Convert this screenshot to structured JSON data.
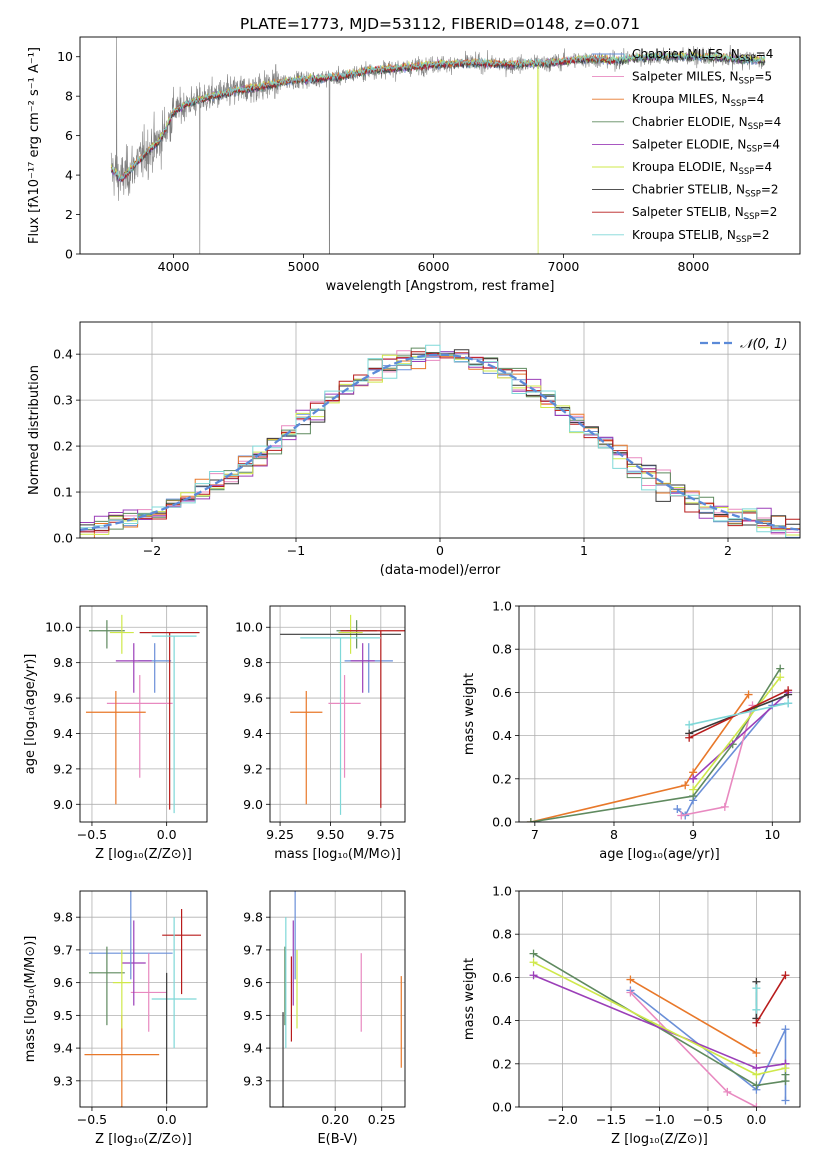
{
  "colors": {
    "chabrier_miles": "#6a8fd8",
    "salpeter_miles": "#e889c0",
    "kroupa_miles": "#e8782a",
    "chabrier_elodie": "#5f8a5f",
    "salpeter_elodie": "#9b3fb8",
    "kroupa_elodie": "#cfe84a",
    "chabrier_stelib": "#3a3a3a",
    "salpeter_stelib": "#b81c1c",
    "kroupa_stelib": "#7fd8d8",
    "normal": "#5b8ad8",
    "grid": "#b0b0b0",
    "data": "#808080"
  },
  "chart_data": [
    {
      "id": "spectrum",
      "type": "line",
      "title": "PLATE=1773, MJD=53112, FIBERID=0148, z=0.071",
      "xlabel": "wavelength [Angstrom, rest frame]",
      "ylabel": "Flux [fλ10⁻¹⁷ erg cm⁻² s⁻¹ A⁻¹]",
      "xlim": [
        3280,
        8820
      ],
      "ylim": [
        0,
        11
      ],
      "xticks": [
        "4000",
        "5000",
        "6000",
        "7000",
        "8000"
      ],
      "yticks": [
        "0",
        "2",
        "4",
        "6",
        "8",
        "10"
      ],
      "grid": false,
      "legend_position": "top-right",
      "legend": [
        {
          "label": "Chabrier MILES, N",
          "sub": "SSP",
          "eq": "=4",
          "color_key": "chabrier_miles"
        },
        {
          "label": "Salpeter MILES, N",
          "sub": "SSP",
          "eq": "=5",
          "color_key": "salpeter_miles"
        },
        {
          "label": "Kroupa MILES, N",
          "sub": "SSP",
          "eq": "=4",
          "color_key": "kroupa_miles"
        },
        {
          "label": "Chabrier ELODIE, N",
          "sub": "SSP",
          "eq": "=4",
          "color_key": "chabrier_elodie"
        },
        {
          "label": "Salpeter ELODIE, N",
          "sub": "SSP",
          "eq": "=4",
          "color_key": "salpeter_elodie"
        },
        {
          "label": "Kroupa ELODIE, N",
          "sub": "SSP",
          "eq": "=4",
          "color_key": "kroupa_elodie"
        },
        {
          "label": "Chabrier STELIB, N",
          "sub": "SSP",
          "eq": "=2",
          "color_key": "chabrier_stelib"
        },
        {
          "label": "Salpeter STELIB, N",
          "sub": "SSP",
          "eq": "=2",
          "color_key": "salpeter_stelib"
        },
        {
          "label": "Kroupa STELIB, N",
          "sub": "SSP",
          "eq": "=2",
          "color_key": "kroupa_stelib"
        }
      ],
      "continuum": {
        "x": [
          3520,
          3600,
          3700,
          3800,
          3900,
          4000,
          4100,
          4300,
          4500,
          4700,
          4900,
          5100,
          5300,
          5500,
          5700,
          6000,
          6300,
          6600,
          6900,
          7200,
          7400,
          7500,
          7700,
          8000,
          8300,
          8550
        ],
        "y": [
          4.3,
          3.8,
          4.5,
          5.2,
          5.8,
          7.2,
          7.6,
          8.0,
          8.3,
          8.5,
          8.8,
          8.9,
          9.0,
          9.3,
          9.4,
          9.6,
          9.7,
          9.6,
          9.7,
          9.9,
          9.8,
          9.9,
          10.0,
          10.0,
          9.9,
          9.8
        ]
      }
    },
    {
      "id": "residuals",
      "type": "histogram",
      "xlabel": "(data-model)/error",
      "ylabel": "Normed distribution",
      "xlim": [
        -2.5,
        2.5
      ],
      "ylim": [
        0,
        0.47
      ],
      "xticks": [
        "−2",
        "−1",
        "0",
        "1",
        "2"
      ],
      "yticks": [
        "0.0",
        "0.1",
        "0.2",
        "0.3",
        "0.4"
      ],
      "grid": true,
      "legend_position": "top-right",
      "legend_label": "𝒩(0, 1)",
      "bin_width": 0.1
    },
    {
      "id": "age_vs_Z",
      "type": "errorbar",
      "xlabel": "Z [log₁₀(Z/Z⊙)]",
      "ylabel": "age  [log₁₀(age/yr)]",
      "xlim": [
        -0.58,
        0.27
      ],
      "ylim": [
        8.9,
        10.12
      ],
      "xticks": [
        "−0.5",
        "0.0"
      ],
      "yticks": [
        "9.0",
        "9.2",
        "9.4",
        "9.6",
        "9.8",
        "10.0"
      ],
      "grid": true,
      "points": [
        {
          "model": "chabrier_miles",
          "x": -0.08,
          "y": 9.81,
          "xerr": 0.11,
          "yerr": [
            0.1,
            0.18
          ]
        },
        {
          "model": "salpeter_miles",
          "x": -0.18,
          "y": 9.57,
          "xerr": 0.22,
          "yerr": [
            0.16,
            0.42
          ]
        },
        {
          "model": "kroupa_miles",
          "x": -0.34,
          "y": 9.52,
          "xerr": 0.2,
          "yerr": [
            0.12,
            0.52
          ]
        },
        {
          "model": "chabrier_elodie",
          "x": -0.4,
          "y": 9.98,
          "xerr": 0.12,
          "yerr": [
            0.06,
            0.1
          ]
        },
        {
          "model": "salpeter_elodie",
          "x": -0.22,
          "y": 9.81,
          "xerr": 0.12,
          "yerr": [
            0.1,
            0.18
          ]
        },
        {
          "model": "kroupa_elodie",
          "x": -0.3,
          "y": 9.97,
          "xerr": 0.08,
          "yerr": [
            0.1,
            0.12
          ]
        },
        {
          "model": "chabrier_stelib",
          "x": 0.02,
          "y": 9.97,
          "xerr": 0.2,
          "yerr": [
            0.0,
            0.0
          ]
        },
        {
          "model": "salpeter_stelib",
          "x": 0.02,
          "y": 9.97,
          "xerr": 0.2,
          "yerr": [
            0.0,
            1.0
          ]
        },
        {
          "model": "kroupa_stelib",
          "x": 0.05,
          "y": 9.95,
          "xerr": 0.15,
          "yerr": [
            0.0,
            1.0
          ]
        }
      ]
    },
    {
      "id": "age_vs_mass",
      "type": "errorbar",
      "xlabel": "mass [log₁₀(M/M⊙)]",
      "ylabel": "",
      "xlim": [
        9.2,
        9.87
      ],
      "ylim": [
        8.9,
        10.12
      ],
      "xticks": [
        "9.25",
        "9.50",
        "9.75"
      ],
      "yticks": [
        "9.0",
        "9.2",
        "9.4",
        "9.6",
        "9.8",
        "10.0"
      ],
      "grid": true,
      "points": [
        {
          "model": "chabrier_miles",
          "x": 9.69,
          "y": 9.81,
          "xerr": 0.12,
          "yerr": [
            0.1,
            0.18
          ]
        },
        {
          "model": "salpeter_miles",
          "x": 9.57,
          "y": 9.57,
          "xerr": 0.08,
          "yerr": [
            0.16,
            0.42
          ]
        },
        {
          "model": "kroupa_miles",
          "x": 9.38,
          "y": 9.52,
          "xerr": 0.08,
          "yerr": [
            0.12,
            0.52
          ]
        },
        {
          "model": "chabrier_elodie",
          "x": 9.63,
          "y": 9.98,
          "xerr": 0.1,
          "yerr": [
            0.06,
            0.1
          ]
        },
        {
          "model": "salpeter_elodie",
          "x": 9.66,
          "y": 9.81,
          "xerr": 0.06,
          "yerr": [
            0.1,
            0.18
          ]
        },
        {
          "model": "kroupa_elodie",
          "x": 9.6,
          "y": 9.97,
          "xerr": 0.06,
          "yerr": [
            0.1,
            0.12
          ]
        },
        {
          "model": "chabrier_stelib",
          "x": 9.55,
          "y": 9.96,
          "xerr": 0.3,
          "yerr": [
            0.0,
            0.0
          ]
        },
        {
          "model": "salpeter_stelib",
          "x": 9.75,
          "y": 9.98,
          "xerr": 0.2,
          "yerr": [
            0.0,
            1.0
          ]
        },
        {
          "model": "kroupa_stelib",
          "x": 9.55,
          "y": 9.94,
          "xerr": 0.2,
          "yerr": [
            0.0,
            1.0
          ]
        }
      ]
    },
    {
      "id": "mass_weight_vs_age",
      "type": "line",
      "xlabel": "age  [log₁₀(age/yr)]",
      "ylabel": "mass weight",
      "xlim": [
        6.8,
        10.35
      ],
      "ylim": [
        0,
        1
      ],
      "xticks": [
        "7",
        "8",
        "9",
        "10"
      ],
      "yticks": [
        "0.0",
        "0.2",
        "0.4",
        "0.6",
        "0.8",
        "1.0"
      ],
      "grid": true,
      "series": [
        {
          "model": "chabrier_miles",
          "x": [
            8.8,
            8.9,
            9.0,
            10.0,
            10.2
          ],
          "y": [
            0.06,
            0.03,
            0.1,
            0.54,
            0.55
          ]
        },
        {
          "model": "salpeter_miles",
          "x": [
            8.85,
            9.4,
            9.75
          ],
          "y": [
            0.03,
            0.07,
            0.54
          ]
        },
        {
          "model": "kroupa_miles",
          "x": [
            6.95,
            8.9,
            9.0,
            9.7
          ],
          "y": [
            0.0,
            0.17,
            0.23,
            0.59
          ]
        },
        {
          "model": "chabrier_elodie",
          "x": [
            6.95,
            9.0,
            9.5,
            10.1
          ],
          "y": [
            0.0,
            0.12,
            0.36,
            0.71
          ]
        },
        {
          "model": "salpeter_elodie",
          "x": [
            9.0,
            10.2,
            9.0
          ],
          "y": [
            0.2,
            0.6,
            0.2
          ]
        },
        {
          "model": "kroupa_elodie",
          "x": [
            9.0,
            10.1
          ],
          "y": [
            0.15,
            0.67
          ]
        },
        {
          "model": "chabrier_stelib",
          "x": [
            8.95,
            10.2
          ],
          "y": [
            0.41,
            0.59
          ]
        },
        {
          "model": "salpeter_stelib",
          "x": [
            8.95,
            10.2
          ],
          "y": [
            0.39,
            0.61
          ]
        },
        {
          "model": "kroupa_stelib",
          "x": [
            8.95,
            10.2
          ],
          "y": [
            0.45,
            0.55
          ]
        }
      ]
    },
    {
      "id": "mass_vs_Z",
      "type": "errorbar",
      "xlabel": "Z [log₁₀(Z/Z⊙)]",
      "ylabel": "mass [log₁₀(M/M⊙)]",
      "xlim": [
        -0.58,
        0.27
      ],
      "ylim": [
        9.22,
        9.88
      ],
      "xticks": [
        "−0.5",
        "0.0"
      ],
      "yticks": [
        "9.3",
        "9.4",
        "9.5",
        "9.6",
        "9.7",
        "9.8"
      ],
      "grid": true,
      "points": [
        {
          "model": "chabrier_miles",
          "x": -0.24,
          "y": 9.69,
          "xerr": 0.28,
          "yerr": 0.0
        },
        {
          "model": "salpeter_miles",
          "x": -0.12,
          "y": 9.57,
          "xerr": 0.12,
          "yerr": 0.0
        },
        {
          "model": "kroupa_miles",
          "x": -0.3,
          "y": 9.38,
          "xerr": 0.25,
          "yerr": 0.0
        },
        {
          "model": "chabrier_elodie",
          "x": -0.4,
          "y": 9.63,
          "xerr": 0.12,
          "yerr": 0.0
        },
        {
          "model": "salpeter_elodie",
          "x": -0.22,
          "y": 9.66,
          "xerr": 0.08,
          "yerr": 0.0
        },
        {
          "model": "kroupa_elodie",
          "x": -0.3,
          "y": 9.6,
          "xerr": 0.06,
          "yerr": 0.0
        },
        {
          "model": "chabrier_stelib",
          "x": 0.0,
          "y": 9.55,
          "xerr": 0.0,
          "yerr": 0.0
        },
        {
          "model": "salpeter_stelib",
          "x": 0.1,
          "y": 9.745,
          "xerr": 0.13,
          "yerr": 0.0
        },
        {
          "model": "kroupa_stelib",
          "x": 0.05,
          "y": 9.55,
          "xerr": 0.15,
          "yerr": 0.0
        }
      ]
    },
    {
      "id": "mass_vs_ebv",
      "type": "errorbar",
      "xlabel": "E(B-V)",
      "ylabel": "",
      "xlim": [
        0.13,
        0.275
      ],
      "ylim": [
        9.22,
        9.88
      ],
      "xticks": [
        "0.20",
        "0.25"
      ],
      "yticks": [
        "9.3",
        "9.4",
        "9.5",
        "9.6",
        "9.7",
        "9.8"
      ],
      "grid": true,
      "points": [
        {
          "model": "chabrier_miles",
          "x": 0.157,
          "y": 9.69,
          "xerr": 0.0,
          "yerr": 0.0
        },
        {
          "model": "salpeter_miles",
          "x": 0.228,
          "y": 9.57,
          "xerr": 0.0,
          "yerr": 0.0
        },
        {
          "model": "kroupa_miles",
          "x": 0.271,
          "y": 9.5,
          "xerr": 0.0,
          "yerr": 0.0
        },
        {
          "model": "chabrier_elodie",
          "x": 0.146,
          "y": 9.63,
          "xerr": 0.0,
          "yerr": 0.0
        },
        {
          "model": "salpeter_elodie",
          "x": 0.155,
          "y": 9.66,
          "xerr": 0.0,
          "yerr": 0.0
        },
        {
          "model": "kroupa_elodie",
          "x": 0.159,
          "y": 9.6,
          "xerr": 0.0,
          "yerr": 0.0
        },
        {
          "model": "chabrier_stelib",
          "x": 0.144,
          "y": 9.43,
          "xerr": 0.0,
          "yerr": 0.0
        },
        {
          "model": "salpeter_stelib",
          "x": 0.153,
          "y": 9.6,
          "xerr": 0.0,
          "yerr": 0.0
        },
        {
          "model": "kroupa_stelib",
          "x": 0.147,
          "y": 9.55,
          "xerr": 0.0,
          "yerr": 0.0
        }
      ]
    },
    {
      "id": "mass_weight_vs_Z",
      "type": "line",
      "xlabel": "Z [log₁₀(Z/Z⊙)]",
      "ylabel": "mass weight",
      "xlim": [
        -2.45,
        0.45
      ],
      "ylim": [
        0,
        1
      ],
      "xticks": [
        "−2.0",
        "−1.5",
        "−1.0",
        "−0.5",
        "0.0"
      ],
      "yticks": [
        "0.0",
        "0.2",
        "0.4",
        "0.6",
        "0.8",
        "1.0"
      ],
      "grid": true,
      "series": [
        {
          "model": "chabrier_miles",
          "x": [
            -1.3,
            0.0,
            0.3,
            0.3
          ],
          "y": [
            0.54,
            0.08,
            0.36,
            0.03
          ]
        },
        {
          "model": "salpeter_miles",
          "x": [
            -1.3,
            -0.3,
            0.0
          ],
          "y": [
            0.53,
            0.07,
            0.0
          ]
        },
        {
          "model": "kroupa_miles",
          "x": [
            -1.3,
            0.0
          ],
          "y": [
            0.59,
            0.25
          ]
        },
        {
          "model": "chabrier_elodie",
          "x": [
            -2.3,
            0.0,
            0.3,
            0.3
          ],
          "y": [
            0.71,
            0.1,
            0.12,
            0.15
          ]
        },
        {
          "model": "salpeter_elodie",
          "x": [
            -2.3,
            0.0,
            0.3,
            0.3
          ],
          "y": [
            0.61,
            0.18,
            0.2,
            0.2
          ]
        },
        {
          "model": "kroupa_elodie",
          "x": [
            -2.3,
            0.0,
            0.3
          ],
          "y": [
            0.67,
            0.15,
            0.18
          ]
        },
        {
          "model": "chabrier_stelib",
          "x": [
            0.0,
            0.0
          ],
          "y": [
            0.58,
            0.41
          ]
        },
        {
          "model": "salpeter_stelib",
          "x": [
            0.0,
            0.3
          ],
          "y": [
            0.39,
            0.61
          ]
        },
        {
          "model": "kroupa_stelib",
          "x": [
            0.0,
            0.0
          ],
          "y": [
            0.55,
            0.45
          ]
        }
      ]
    }
  ]
}
